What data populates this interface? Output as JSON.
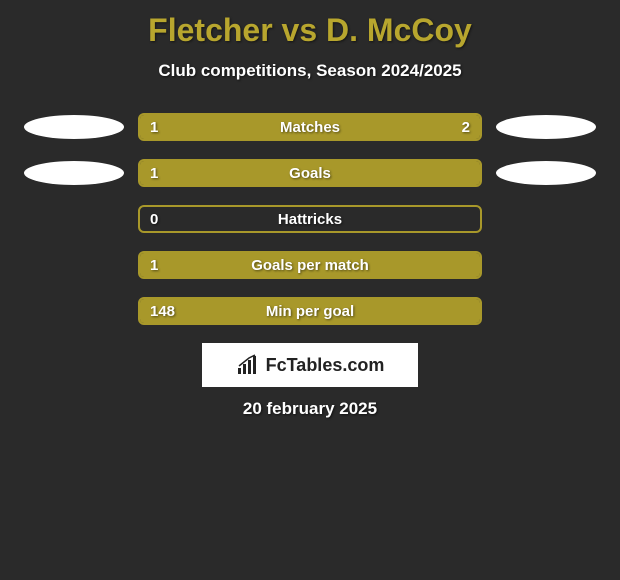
{
  "title": "Fletcher vs D. McCoy",
  "subtitle": "Club competitions, Season 2024/2025",
  "date": "20 february 2025",
  "logo_text": "FcTables.com",
  "colors": {
    "background": "#2a2a2a",
    "accent": "#a8982a",
    "title_color": "#b8a62e",
    "text": "#ffffff",
    "ellipse": "#ffffff",
    "logo_bg": "#ffffff",
    "logo_text": "#222222"
  },
  "stats": [
    {
      "label": "Matches",
      "left_value": "1",
      "right_value": "2",
      "left_fill_pct": 33,
      "right_fill_pct": 67,
      "show_ellipses": true,
      "show_right_value": true
    },
    {
      "label": "Goals",
      "left_value": "1",
      "right_value": "",
      "left_fill_pct": 100,
      "right_fill_pct": 0,
      "show_ellipses": true,
      "show_right_value": false
    },
    {
      "label": "Hattricks",
      "left_value": "0",
      "right_value": "",
      "left_fill_pct": 0,
      "right_fill_pct": 0,
      "show_ellipses": false,
      "show_right_value": false
    },
    {
      "label": "Goals per match",
      "left_value": "1",
      "right_value": "",
      "left_fill_pct": 100,
      "right_fill_pct": 0,
      "show_ellipses": false,
      "show_right_value": false
    },
    {
      "label": "Min per goal",
      "left_value": "148",
      "right_value": "",
      "left_fill_pct": 100,
      "right_fill_pct": 0,
      "show_ellipses": false,
      "show_right_value": false
    }
  ]
}
